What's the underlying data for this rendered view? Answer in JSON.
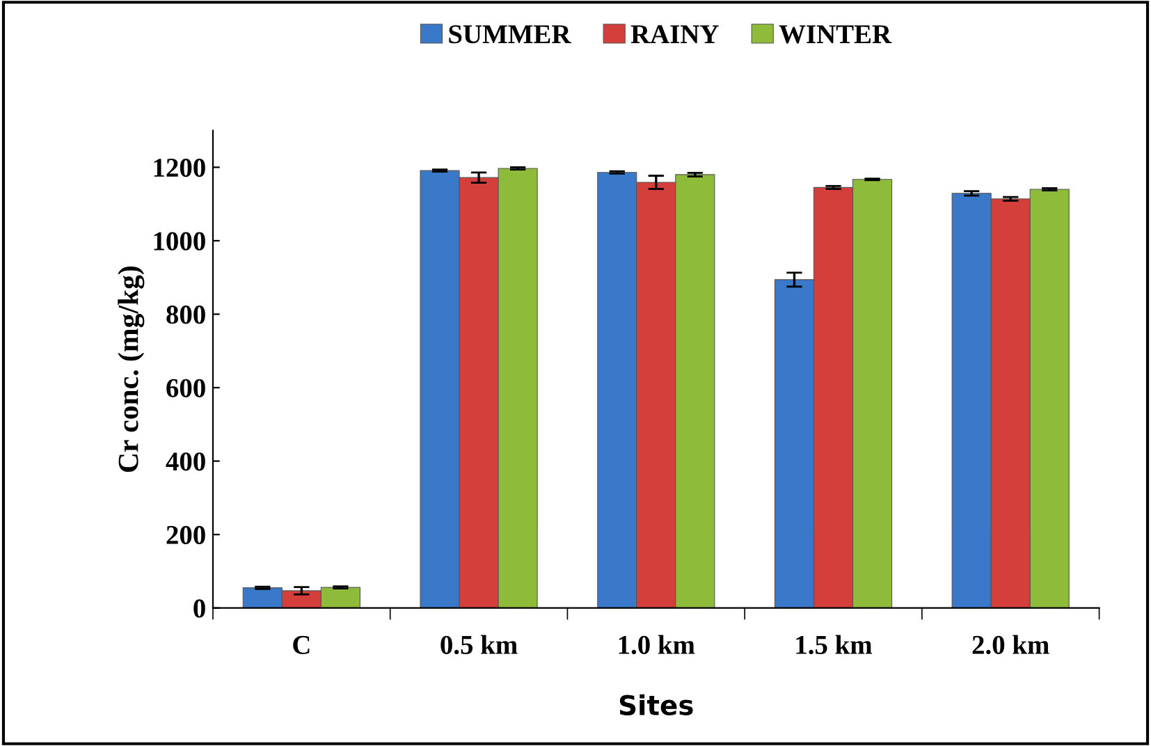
{
  "chart_data": {
    "type": "bar",
    "xlabel": "Sites",
    "ylabel": "Cr conc. (mg/kg)",
    "categories": [
      "C",
      "0.5 km",
      "1.0 km",
      "1.5 km",
      "2.0 km"
    ],
    "series": [
      {
        "name": "SUMMER",
        "color": "#3a78c9",
        "values": [
          55,
          1191,
          1186,
          894,
          1129
        ],
        "errors": [
          3,
          3,
          3,
          19,
          6
        ]
      },
      {
        "name": "RAINY",
        "color": "#d43f3c",
        "values": [
          47,
          1172,
          1159,
          1145,
          1114
        ],
        "errors": [
          10,
          14,
          18,
          4,
          5
        ]
      },
      {
        "name": "WINTER",
        "color": "#8fbb3a",
        "values": [
          56,
          1197,
          1180,
          1167,
          1140
        ],
        "errors": [
          3,
          3,
          5,
          2,
          3
        ]
      }
    ],
    "ylim": [
      0,
      1300
    ],
    "yticks": [
      0,
      200,
      400,
      600,
      800,
      1000,
      1200
    ],
    "grid": false,
    "legend": "top"
  }
}
